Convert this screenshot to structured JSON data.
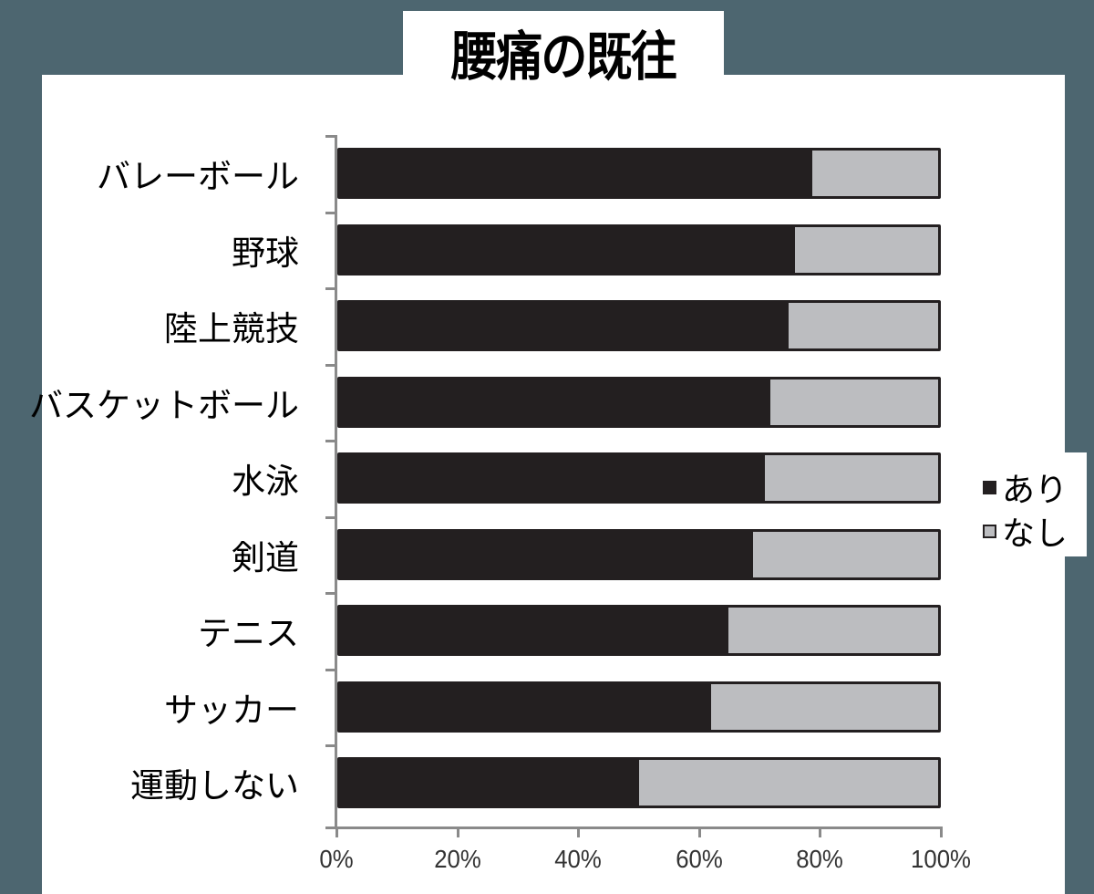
{
  "chart_data": {
    "type": "bar",
    "orientation": "horizontal",
    "stacked": true,
    "percent": true,
    "title": "腰痛の既往",
    "xlabel": "",
    "ylabel": "",
    "xlim": [
      0,
      100
    ],
    "x_ticks": [
      "0%",
      "20%",
      "40%",
      "60%",
      "80%",
      "100%"
    ],
    "categories": [
      "バレーボール",
      "野球",
      "陸上競技",
      "バスケットボール",
      "水泳",
      "剣道",
      "テニス",
      "サッカー",
      "運動しない"
    ],
    "series": [
      {
        "name": "あり",
        "color": "#231f20",
        "values": [
          79,
          76,
          75,
          72,
          71,
          69,
          65,
          62,
          50
        ]
      },
      {
        "name": "なし",
        "color": "#bcbdc0",
        "values": [
          21,
          24,
          25,
          28,
          29,
          31,
          35,
          38,
          50
        ]
      }
    ],
    "legend": {
      "position": "right",
      "entries": [
        "あり",
        "なし"
      ]
    },
    "grid": false
  },
  "title": "腰痛の既往",
  "legend": {
    "items": [
      {
        "label": "あり",
        "color": "#231f20"
      },
      {
        "label": "なし",
        "color": "#bcbdc0"
      }
    ]
  },
  "x_axis": {
    "ticks": [
      "0%",
      "20%",
      "40%",
      "60%",
      "80%",
      "100%"
    ]
  },
  "categories": [
    {
      "label": "バレーボール",
      "yes": 79
    },
    {
      "label": "野球",
      "yes": 76
    },
    {
      "label": "陸上競技",
      "yes": 75
    },
    {
      "label": "バスケットボール",
      "yes": 72
    },
    {
      "label": "水泳",
      "yes": 71
    },
    {
      "label": "剣道",
      "yes": 69
    },
    {
      "label": "テニス",
      "yes": 65
    },
    {
      "label": "サッカー",
      "yes": 62
    },
    {
      "label": "運動しない",
      "yes": 50
    }
  ]
}
